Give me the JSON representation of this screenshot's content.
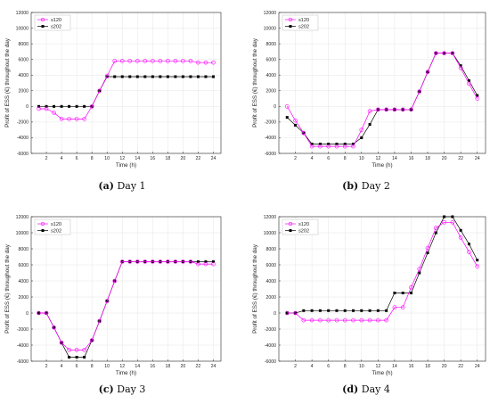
{
  "colors": {
    "s120": "#ff00ff",
    "s202": "#000000",
    "grid": "#e6e6e6",
    "axis": "#262626"
  },
  "panels": [
    {
      "caption_label": "(a)",
      "caption_text": " Day 1"
    },
    {
      "caption_label": "(b)",
      "caption_text": " Day 2"
    },
    {
      "caption_label": "(c)",
      "caption_text": " Day 3"
    },
    {
      "caption_label": "(d)",
      "caption_text": " Day 4"
    }
  ],
  "chart_data": [
    {
      "type": "line",
      "xlabel": "Time (h)",
      "ylabel": "Profit of ESS (€) throughout the day",
      "ylim": [
        -6000,
        12000
      ],
      "yticks": [
        -6000,
        -4000,
        -2000,
        0,
        2000,
        4000,
        6000,
        8000,
        10000,
        12000
      ],
      "xlim": [
        0,
        25
      ],
      "xticks": [
        2,
        4,
        6,
        8,
        10,
        12,
        14,
        16,
        18,
        20,
        22,
        24
      ],
      "grid": true,
      "legend": "top-left",
      "x": [
        1,
        2,
        3,
        4,
        5,
        6,
        7,
        8,
        9,
        10,
        11,
        12,
        13,
        14,
        15,
        16,
        17,
        18,
        19,
        20,
        21,
        22,
        23,
        24
      ],
      "series": [
        {
          "name": "s120",
          "marker": "circle",
          "values": [
            -300,
            -300,
            -800,
            -1600,
            -1600,
            -1600,
            -1600,
            0,
            2000,
            3900,
            5800,
            5800,
            5800,
            5800,
            5800,
            5800,
            5800,
            5800,
            5800,
            5800,
            5800,
            5600,
            5600,
            5600
          ]
        },
        {
          "name": "s202",
          "marker": "square",
          "values": [
            0,
            0,
            0,
            0,
            0,
            0,
            0,
            0,
            2000,
            3800,
            3800,
            3800,
            3800,
            3800,
            3800,
            3800,
            3800,
            3800,
            3800,
            3800,
            3800,
            3800,
            3800,
            3800
          ]
        }
      ]
    },
    {
      "type": "line",
      "xlabel": "Time (h)",
      "ylabel": "Profit of ESS (€) throughout the day",
      "ylim": [
        -6000,
        12000
      ],
      "yticks": [
        -6000,
        -4000,
        -2000,
        0,
        2000,
        4000,
        6000,
        8000,
        10000,
        12000
      ],
      "xlim": [
        0,
        25
      ],
      "xticks": [
        2,
        4,
        6,
        8,
        10,
        12,
        14,
        16,
        18,
        20,
        22,
        24
      ],
      "grid": true,
      "legend": "top-left",
      "x": [
        1,
        2,
        3,
        4,
        5,
        6,
        7,
        8,
        9,
        10,
        11,
        12,
        13,
        14,
        15,
        16,
        17,
        18,
        19,
        20,
        21,
        22,
        23,
        24
      ],
      "series": [
        {
          "name": "s120",
          "marker": "circle",
          "values": [
            0,
            -1800,
            -3400,
            -5100,
            -5100,
            -5100,
            -5100,
            -5100,
            -5100,
            -3000,
            -600,
            -400,
            -400,
            -400,
            -400,
            -400,
            1900,
            4400,
            6800,
            6800,
            6800,
            4900,
            2900,
            1000
          ]
        },
        {
          "name": "s202",
          "marker": "square",
          "values": [
            -1400,
            -2400,
            -3400,
            -4800,
            -4800,
            -4800,
            -4800,
            -4800,
            -4800,
            -4000,
            -2300,
            -400,
            -400,
            -400,
            -400,
            -400,
            1900,
            4400,
            6800,
            6800,
            6800,
            5200,
            3300,
            1400
          ]
        }
      ]
    },
    {
      "type": "line",
      "xlabel": "Time (h)",
      "ylabel": "Profit of ESS (€) throughout the day",
      "ylim": [
        -6000,
        12000
      ],
      "yticks": [
        -6000,
        -4000,
        -2000,
        0,
        2000,
        4000,
        6000,
        8000,
        10000,
        12000
      ],
      "xlim": [
        0,
        25
      ],
      "xticks": [
        2,
        4,
        6,
        8,
        10,
        12,
        14,
        16,
        18,
        20,
        22,
        24
      ],
      "grid": true,
      "legend": "top-left",
      "x": [
        1,
        2,
        3,
        4,
        5,
        6,
        7,
        8,
        9,
        10,
        11,
        12,
        13,
        14,
        15,
        16,
        17,
        18,
        19,
        20,
        21,
        22,
        23,
        24
      ],
      "series": [
        {
          "name": "s120",
          "marker": "circle",
          "values": [
            0,
            0,
            -1800,
            -3700,
            -4600,
            -4600,
            -4600,
            -3400,
            -1000,
            1500,
            4000,
            6400,
            6400,
            6400,
            6400,
            6400,
            6400,
            6400,
            6400,
            6400,
            6400,
            6100,
            6100,
            6100
          ]
        },
        {
          "name": "s202",
          "marker": "square",
          "values": [
            0,
            0,
            -1800,
            -3700,
            -5500,
            -5500,
            -5500,
            -3400,
            -1000,
            1500,
            4000,
            6400,
            6400,
            6400,
            6400,
            6400,
            6400,
            6400,
            6400,
            6400,
            6400,
            6400,
            6400,
            6400
          ]
        }
      ]
    },
    {
      "type": "line",
      "xlabel": "Time (h)",
      "ylabel": "Profit of ESS (€) throughout the day",
      "ylim": [
        -6000,
        12000
      ],
      "yticks": [
        -6000,
        -4000,
        -2000,
        0,
        2000,
        4000,
        6000,
        8000,
        10000,
        12000
      ],
      "xlim": [
        0,
        25
      ],
      "xticks": [
        2,
        4,
        6,
        8,
        10,
        12,
        14,
        16,
        18,
        20,
        22,
        24
      ],
      "grid": true,
      "legend": "top-left",
      "x": [
        1,
        2,
        3,
        4,
        5,
        6,
        7,
        8,
        9,
        10,
        11,
        12,
        13,
        14,
        15,
        16,
        17,
        18,
        19,
        20,
        21,
        22,
        23,
        24
      ],
      "series": [
        {
          "name": "s120",
          "marker": "circle",
          "values": [
            0,
            0,
            -900,
            -900,
            -900,
            -900,
            -900,
            -900,
            -900,
            -900,
            -900,
            -900,
            -900,
            700,
            700,
            3200,
            5500,
            8100,
            10600,
            11300,
            11300,
            9400,
            7600,
            5800
          ]
        },
        {
          "name": "s202",
          "marker": "square",
          "values": [
            0,
            0,
            300,
            300,
            300,
            300,
            300,
            300,
            300,
            300,
            300,
            300,
            300,
            2500,
            2500,
            2500,
            5000,
            7500,
            10000,
            12000,
            12000,
            10300,
            8600,
            6600
          ]
        }
      ]
    }
  ]
}
